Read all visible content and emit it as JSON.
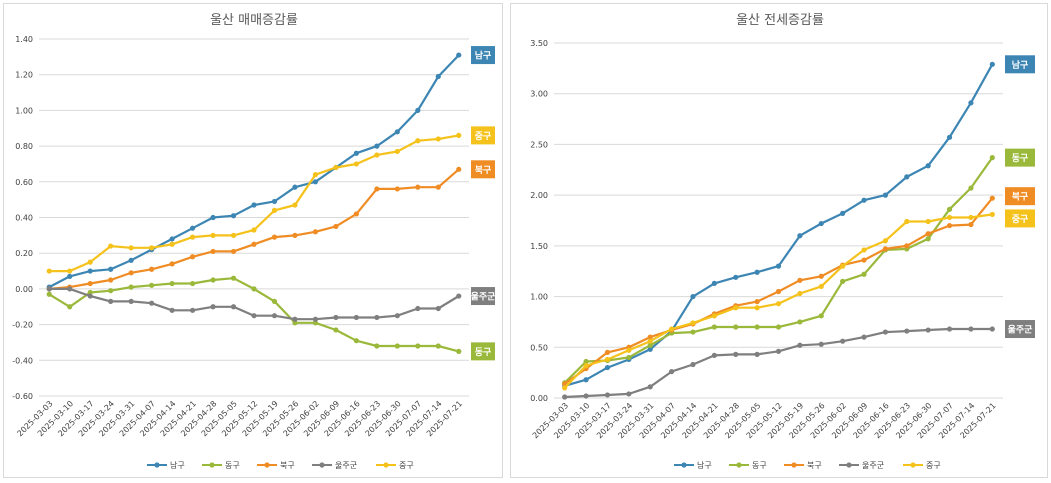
{
  "chart_data": [
    {
      "type": "line",
      "title": "울산 매매증감률",
      "x": [
        "2025-03-03",
        "2025-03-10",
        "2025-03-17",
        "2025-03-24",
        "2025-03-31",
        "2025-04-07",
        "2025-04-14",
        "2025-04-21",
        "2025-04-28",
        "2025-05-05",
        "2025-05-12",
        "2025-05-19",
        "2025-05-26",
        "2025-06-02",
        "2025-06-09",
        "2025-06-16",
        "2025-06-23",
        "2025-06-30",
        "2025-07-07",
        "2025-07-14",
        "2025-07-21"
      ],
      "ylim": [
        -0.6,
        1.4
      ],
      "yticks": [
        -0.6,
        -0.4,
        -0.2,
        0.0,
        0.2,
        0.4,
        0.6,
        0.8,
        1.0,
        1.2,
        1.4
      ],
      "ytick_labels": [
        "-0.60",
        "-0.40",
        "-0.20",
        "0.00",
        "0.20",
        "0.40",
        "0.60",
        "0.80",
        "1.00",
        "1.20",
        "1.40"
      ],
      "grid": true,
      "legend": "bottom",
      "series": [
        {
          "name": "남구",
          "color": "#3d86b4",
          "values": [
            0.01,
            0.07,
            0.1,
            0.11,
            0.16,
            0.22,
            0.28,
            0.34,
            0.4,
            0.41,
            0.47,
            0.49,
            0.57,
            0.6,
            0.68,
            0.76,
            0.8,
            0.88,
            1.0,
            1.19,
            1.31
          ]
        },
        {
          "name": "동구",
          "color": "#9ab83a",
          "values": [
            -0.03,
            -0.1,
            -0.02,
            -0.01,
            0.01,
            0.02,
            0.03,
            0.03,
            0.05,
            0.06,
            0.0,
            -0.07,
            -0.19,
            -0.19,
            -0.23,
            -0.29,
            -0.32,
            -0.32,
            -0.32,
            -0.32,
            -0.35
          ]
        },
        {
          "name": "북구",
          "color": "#ef8c24",
          "values": [
            0.0,
            0.01,
            0.03,
            0.05,
            0.09,
            0.11,
            0.14,
            0.18,
            0.21,
            0.21,
            0.25,
            0.29,
            0.3,
            0.32,
            0.35,
            0.42,
            0.56,
            0.56,
            0.57,
            0.57,
            0.67
          ]
        },
        {
          "name": "울주군",
          "color": "#7f7f7f",
          "values": [
            0.0,
            0.0,
            -0.04,
            -0.07,
            -0.07,
            -0.08,
            -0.12,
            -0.12,
            -0.1,
            -0.1,
            -0.15,
            -0.15,
            -0.17,
            -0.17,
            -0.16,
            -0.16,
            -0.16,
            -0.15,
            -0.11,
            -0.11,
            -0.04
          ]
        },
        {
          "name": "중구",
          "color": "#f5c21b",
          "values": [
            0.1,
            0.1,
            0.15,
            0.24,
            0.23,
            0.23,
            0.25,
            0.29,
            0.3,
            0.3,
            0.33,
            0.44,
            0.47,
            0.64,
            0.68,
            0.7,
            0.75,
            0.77,
            0.83,
            0.84,
            0.86
          ]
        }
      ]
    },
    {
      "type": "line",
      "title": "울산 전세증감률",
      "x": [
        "2025-03-03",
        "2025-03-10",
        "2025-03-17",
        "2025-03-24",
        "2025-03-31",
        "2025-04-07",
        "2025-04-14",
        "2025-04-21",
        "2025-04-28",
        "2025-05-05",
        "2025-05-12",
        "2025-05-19",
        "2025-05-26",
        "2025-06-02",
        "2025-06-09",
        "2025-06-16",
        "2025-06-23",
        "2025-06-30",
        "2025-07-07",
        "2025-07-14",
        "2025-07-21"
      ],
      "ylim": [
        0.0,
        3.5
      ],
      "yticks": [
        0.0,
        0.5,
        1.0,
        1.5,
        2.0,
        2.5,
        3.0,
        3.5
      ],
      "ytick_labels": [
        "0.00",
        "0.50",
        "1.00",
        "1.50",
        "2.00",
        "2.50",
        "3.00",
        "3.50"
      ],
      "grid": true,
      "legend": "bottom",
      "series": [
        {
          "name": "남구",
          "color": "#3d86b4",
          "values": [
            0.12,
            0.18,
            0.3,
            0.38,
            0.48,
            0.66,
            1.0,
            1.13,
            1.19,
            1.24,
            1.3,
            1.6,
            1.72,
            1.82,
            1.95,
            2.0,
            2.18,
            2.29,
            2.57,
            2.91,
            3.29
          ]
        },
        {
          "name": "동구",
          "color": "#9ab83a",
          "values": [
            0.15,
            0.36,
            0.37,
            0.4,
            0.52,
            0.64,
            0.65,
            0.7,
            0.7,
            0.7,
            0.7,
            0.75,
            0.81,
            1.15,
            1.22,
            1.46,
            1.47,
            1.57,
            1.86,
            2.07,
            2.37
          ]
        },
        {
          "name": "북구",
          "color": "#ef8c24",
          "values": [
            0.14,
            0.29,
            0.45,
            0.5,
            0.6,
            0.67,
            0.73,
            0.83,
            0.91,
            0.95,
            1.05,
            1.16,
            1.2,
            1.31,
            1.36,
            1.47,
            1.5,
            1.62,
            1.7,
            1.71,
            1.97
          ]
        },
        {
          "name": "울주군",
          "color": "#7f7f7f",
          "values": [
            0.01,
            0.02,
            0.03,
            0.04,
            0.11,
            0.26,
            0.33,
            0.42,
            0.43,
            0.43,
            0.46,
            0.52,
            0.53,
            0.56,
            0.6,
            0.65,
            0.66,
            0.67,
            0.68,
            0.68,
            0.68
          ]
        },
        {
          "name": "중구",
          "color": "#f5c21b",
          "values": [
            0.1,
            0.32,
            0.38,
            0.47,
            0.56,
            0.68,
            0.74,
            0.81,
            0.89,
            0.89,
            0.93,
            1.03,
            1.1,
            1.3,
            1.46,
            1.55,
            1.74,
            1.74,
            1.78,
            1.78,
            1.81
          ]
        }
      ]
    }
  ]
}
